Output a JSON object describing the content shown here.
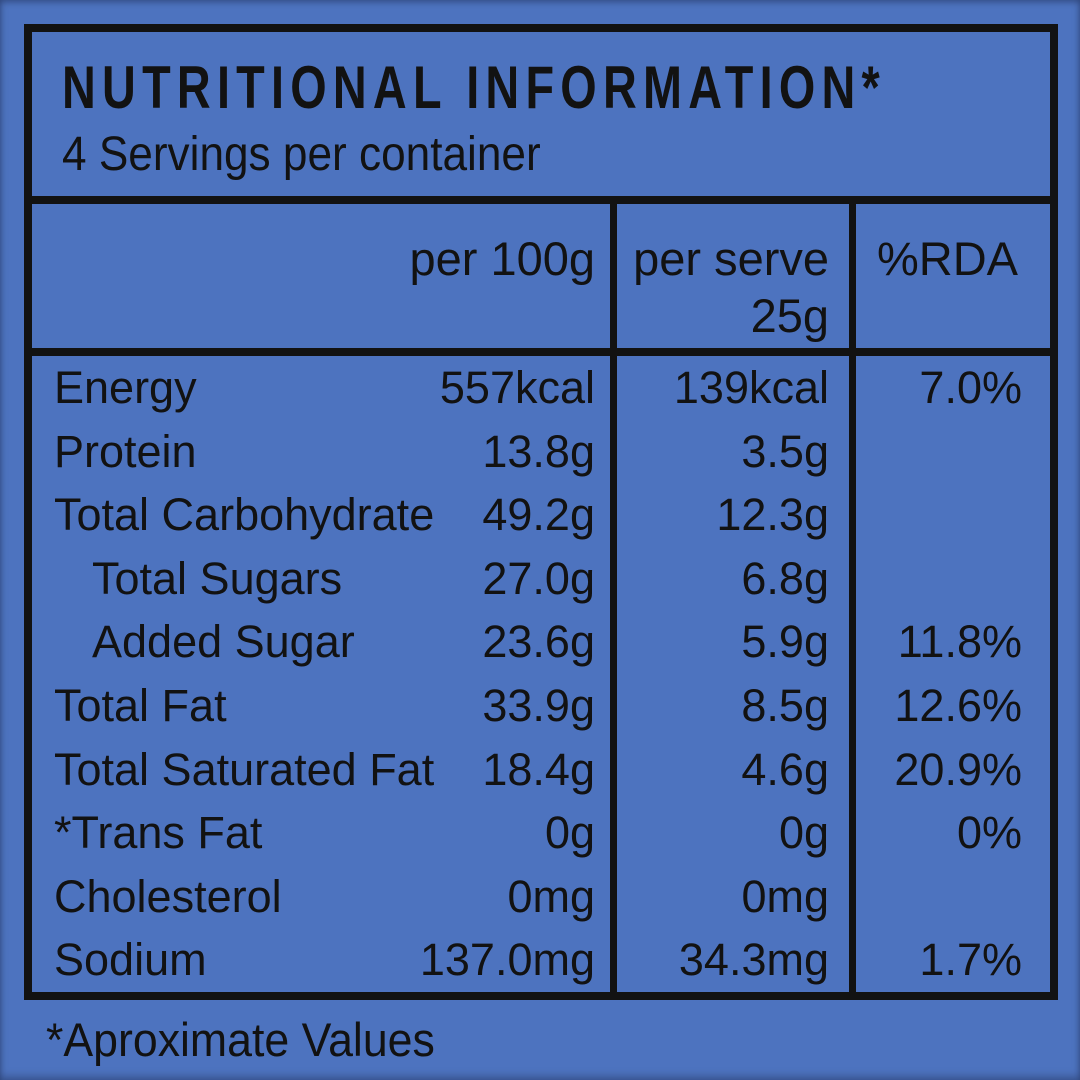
{
  "colors": {
    "background": "#4d73bf",
    "ink": "#121212"
  },
  "label": {
    "title": "NUTRITIONAL INFORMATION*",
    "subtitle": "4 Servings per container",
    "columns": {
      "per_100g": "per 100g",
      "per_serve_line1": "per serve",
      "per_serve_line2": "25g",
      "rda": "%RDA"
    },
    "rows": [
      {
        "label": "Energy",
        "indent": false,
        "per_100g": "557kcal",
        "per_serve": "139kcal",
        "rda": "7.0%"
      },
      {
        "label": "Protein",
        "indent": false,
        "per_100g": "13.8g",
        "per_serve": "3.5g",
        "rda": ""
      },
      {
        "label": "Total Carbohydrate",
        "indent": false,
        "per_100g": "49.2g",
        "per_serve": "12.3g",
        "rda": ""
      },
      {
        "label": "Total Sugars",
        "indent": true,
        "per_100g": "27.0g",
        "per_serve": "6.8g",
        "rda": ""
      },
      {
        "label": "Added Sugar",
        "indent": true,
        "per_100g": "23.6g",
        "per_serve": "5.9g",
        "rda": "11.8%"
      },
      {
        "label": "Total Fat",
        "indent": false,
        "per_100g": "33.9g",
        "per_serve": "8.5g",
        "rda": "12.6%"
      },
      {
        "label": "Total Saturated Fat",
        "indent": false,
        "per_100g": "18.4g",
        "per_serve": "4.6g",
        "rda": "20.9%"
      },
      {
        "label": "*Trans Fat",
        "indent": false,
        "per_100g": "0g",
        "per_serve": "0g",
        "rda": "0%"
      },
      {
        "label": "Cholesterol",
        "indent": false,
        "per_100g": "0mg",
        "per_serve": "0mg",
        "rda": ""
      },
      {
        "label": "Sodium",
        "indent": false,
        "per_100g": "137.0mg",
        "per_serve": "34.3mg",
        "rda": "1.7%"
      }
    ],
    "footnote": "*Aproximate Values"
  }
}
